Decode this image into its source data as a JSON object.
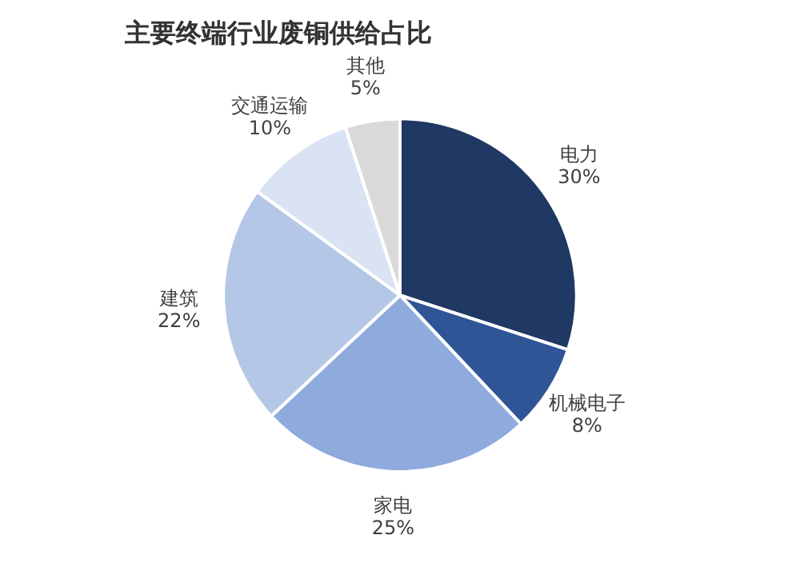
{
  "chart_data": {
    "type": "pie",
    "title": "主要终端行业废铜供给占比",
    "categories": [
      "电力",
      "机械电子",
      "家电",
      "建筑",
      "交通运输",
      "其他"
    ],
    "values": [
      30,
      8,
      25,
      22,
      10,
      5
    ],
    "colors": [
      "#1f3864",
      "#2f5597",
      "#8faadc",
      "#b4c7e7",
      "#dae3f3",
      "#d9d9d9"
    ],
    "value_labels": [
      "30%",
      "8%",
      "25%",
      "22%",
      "10%",
      "5%"
    ],
    "legend": false
  }
}
